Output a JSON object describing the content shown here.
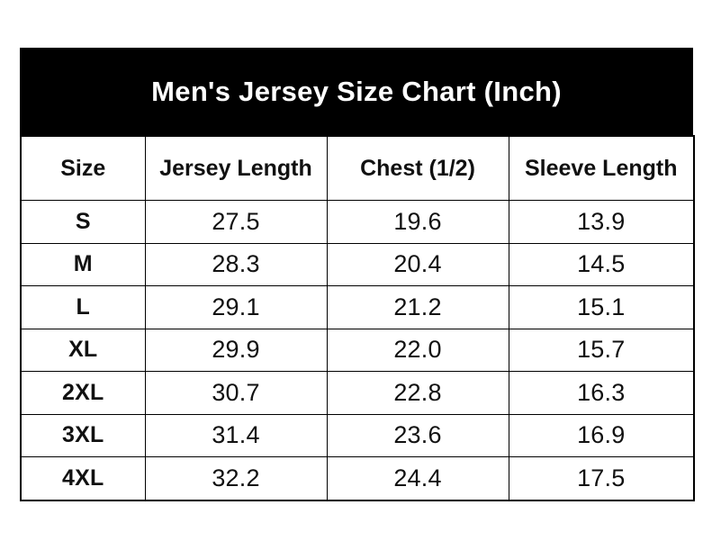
{
  "title": "Men's Jersey Size Chart (Inch)",
  "chart_data": {
    "type": "table",
    "title": "Men's Jersey Size Chart (Inch)",
    "columns": [
      "Size",
      "Jersey Length",
      "Chest (1/2)",
      "Sleeve Length"
    ],
    "rows": [
      [
        "S",
        "27.5",
        "19.6",
        "13.9"
      ],
      [
        "M",
        "28.3",
        "20.4",
        "14.5"
      ],
      [
        "L",
        "29.1",
        "21.2",
        "15.1"
      ],
      [
        "XL",
        "29.9",
        "22.0",
        "15.7"
      ],
      [
        "2XL",
        "30.7",
        "22.8",
        "16.3"
      ],
      [
        "3XL",
        "31.4",
        "23.6",
        "16.9"
      ],
      [
        "4XL",
        "32.2",
        "24.4",
        "17.5"
      ]
    ]
  },
  "colors": {
    "page_bg": "#ffffff",
    "title_band_bg": "#000000",
    "title_text": "#ffffff",
    "table_border": "#000000",
    "cell_text": "#111111"
  }
}
